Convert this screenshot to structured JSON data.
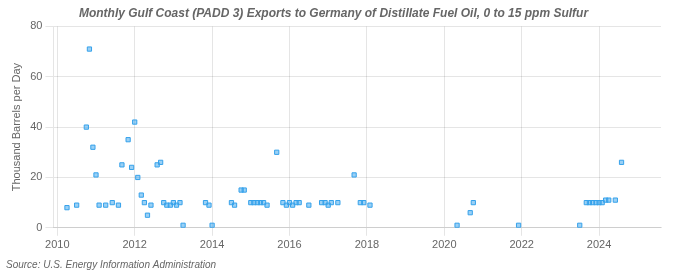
{
  "chart_data": {
    "type": "scatter",
    "title": "Monthly Gulf Coast (PADD 3) Exports to Germany of Distillate Fuel Oil, 0 to 15 ppm Sulfur",
    "ylabel": "Thousand Barrels per Day",
    "source": "Source: U.S. Energy Information Administration",
    "marker": "square",
    "grid": true,
    "xlim": [
      2009.9,
      2025.6
    ],
    "xticks": [
      2010,
      2012,
      2014,
      2016,
      2018,
      2020,
      2022,
      2024
    ],
    "ylim": [
      0,
      80
    ],
    "yticks": [
      0,
      20,
      40,
      60,
      80
    ],
    "x": [
      2010.25,
      2010.5,
      2010.75,
      2010.83,
      2010.92,
      2011.0,
      2011.08,
      2011.25,
      2011.42,
      2011.58,
      2011.67,
      2011.83,
      2011.92,
      2012.0,
      2012.08,
      2012.17,
      2012.25,
      2012.33,
      2012.42,
      2012.58,
      2012.67,
      2012.75,
      2012.83,
      2012.92,
      2013.0,
      2013.08,
      2013.17,
      2013.25,
      2013.83,
      2013.92,
      2014.0,
      2014.5,
      2014.58,
      2014.75,
      2014.83,
      2015.0,
      2015.08,
      2015.17,
      2015.25,
      2015.33,
      2015.42,
      2015.67,
      2015.83,
      2015.92,
      2016.0,
      2016.08,
      2016.17,
      2016.25,
      2016.5,
      2016.83,
      2016.92,
      2017.0,
      2017.08,
      2017.25,
      2017.67,
      2017.83,
      2017.92,
      2018.08,
      2020.33,
      2020.67,
      2020.75,
      2021.92,
      2023.5,
      2023.67,
      2023.75,
      2023.83,
      2023.92,
      2024.0,
      2024.08,
      2024.17,
      2024.25,
      2024.42,
      2024.58
    ],
    "values": [
      8,
      9,
      40,
      71,
      32,
      21,
      9,
      9,
      10,
      9,
      25,
      35,
      24,
      42,
      20,
      13,
      10,
      5,
      9,
      25,
      26,
      10,
      9,
      9,
      10,
      9,
      10,
      1,
      10,
      9,
      1,
      10,
      9,
      15,
      15,
      10,
      10,
      10,
      10,
      10,
      9,
      30,
      10,
      9,
      10,
      9,
      10,
      10,
      9,
      10,
      10,
      9,
      10,
      10,
      21,
      10,
      10,
      9,
      1,
      6,
      10,
      1,
      1,
      10,
      10,
      10,
      10,
      10,
      10,
      11,
      11,
      11,
      26
    ]
  }
}
